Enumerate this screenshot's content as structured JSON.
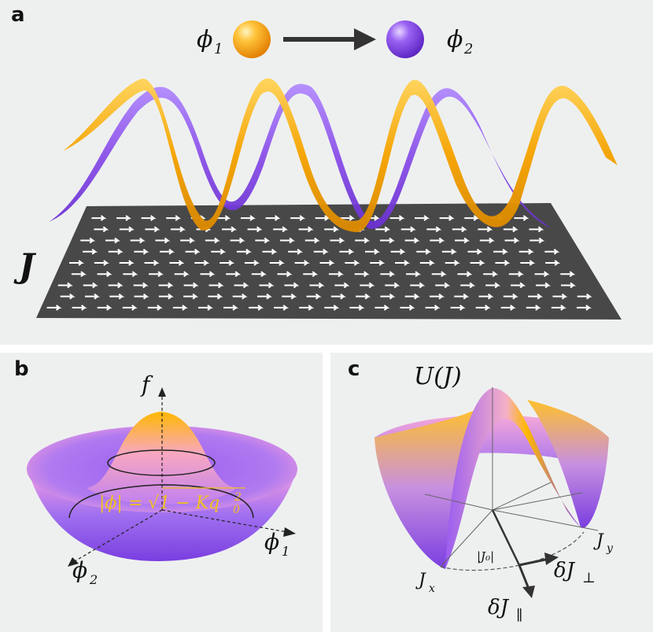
{
  "panel_a": {
    "label": "a",
    "phi1_label": "ϕ",
    "phi1_sub": "1",
    "phi2_label": "ϕ",
    "phi2_sub": "2",
    "J_label": "J",
    "colors": {
      "phi1": "#f5a300",
      "phi2": "#8a4fe8",
      "plane": "#4a4a4a",
      "arrow": "#ffffff"
    }
  },
  "panel_b": {
    "label": "b",
    "f_axis": "f",
    "phi1_axis": "ϕ",
    "phi1_sub": "1",
    "phi2_axis": "ϕ",
    "phi2_sub": "2",
    "annotation": "|ϕ| = √1 − Kq",
    "annotation_sup": "2",
    "annotation_sub": "0",
    "colors": {
      "annotation": "#f0c020"
    }
  },
  "panel_c": {
    "label": "c",
    "U_label": "U(J)",
    "Jx": "J",
    "Jx_sub": "x",
    "Jy": "J",
    "Jy_sub": "y",
    "J0_label": "|J₀|",
    "dJperp": "δJ",
    "dJperp_sub": "⊥",
    "dJpar": "δJ",
    "dJpar_sub": "∥"
  }
}
